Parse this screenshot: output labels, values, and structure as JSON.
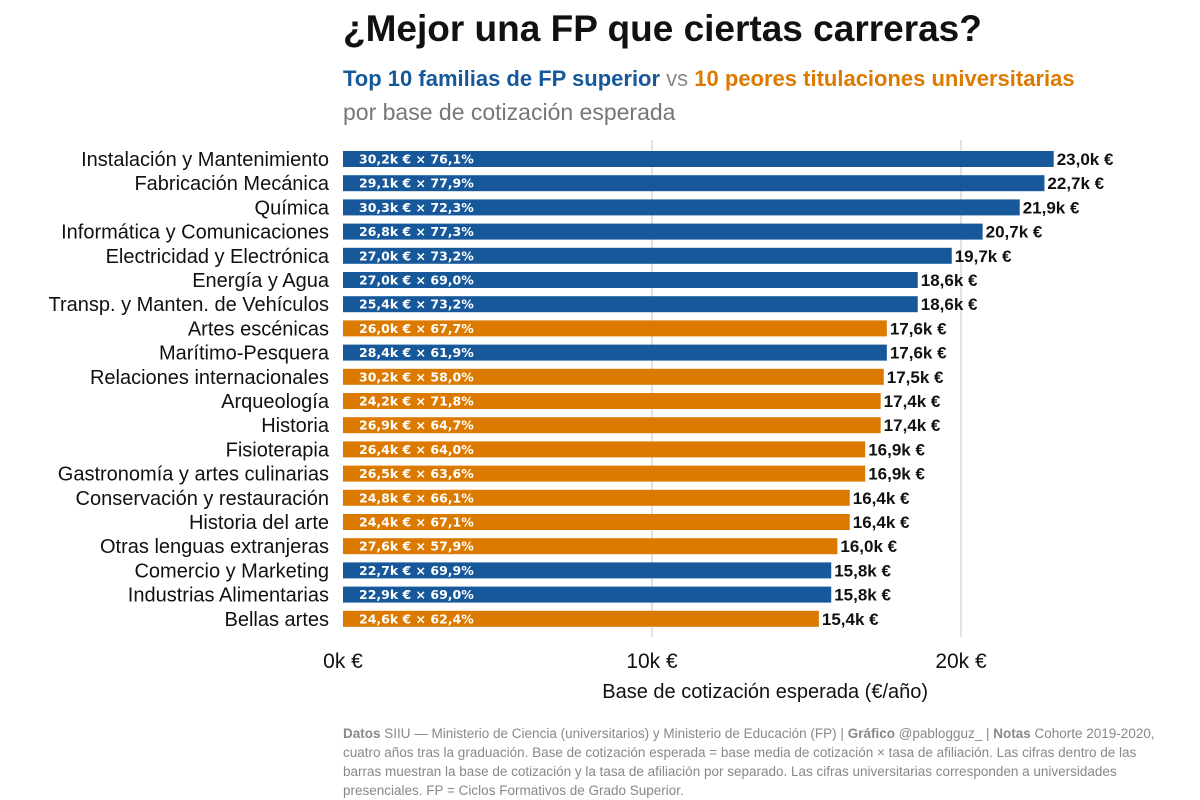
{
  "header": {
    "title": "¿Mejor una FP que ciertas carreras?",
    "subtitle_fp": "Top 10 familias de FP superior",
    "subtitle_vs": " vs ",
    "subtitle_uni": "10 peores titulaciones universitarias",
    "subtitle2": "por base de cotización esperada"
  },
  "colors": {
    "fp": "#16589a",
    "uni": "#dc7a00",
    "grid": "#e2e2e2"
  },
  "chart_data": {
    "type": "bar",
    "orientation": "horizontal",
    "title": "¿Mejor una FP que ciertas carreras?",
    "xlabel": "Base de cotización esperada (€/año)",
    "xlim": [
      0,
      27000
    ],
    "xticks": [
      {
        "value": 0,
        "label": "0k €"
      },
      {
        "value": 10000,
        "label": "10k €"
      },
      {
        "value": 20000,
        "label": "20k €"
      }
    ],
    "grid": true,
    "bars": [
      {
        "category": "Instalación y Mantenimiento",
        "group": "fp",
        "value": 23000,
        "value_label": "23,0k €",
        "inner_label": "30,2k € × 76,1%"
      },
      {
        "category": "Fabricación Mecánica",
        "group": "fp",
        "value": 22700,
        "value_label": "22,7k €",
        "inner_label": "29,1k € × 77,9%"
      },
      {
        "category": "Química",
        "group": "fp",
        "value": 21900,
        "value_label": "21,9k €",
        "inner_label": "30,3k € × 72,3%"
      },
      {
        "category": "Informática y Comunicaciones",
        "group": "fp",
        "value": 20700,
        "value_label": "20,7k €",
        "inner_label": "26,8k € × 77,3%"
      },
      {
        "category": "Electricidad y Electrónica",
        "group": "fp",
        "value": 19700,
        "value_label": "19,7k €",
        "inner_label": "27,0k € × 73,2%"
      },
      {
        "category": "Energía y Agua",
        "group": "fp",
        "value": 18600,
        "value_label": "18,6k €",
        "inner_label": "27,0k € × 69,0%"
      },
      {
        "category": "Transp. y Manten. de Vehículos",
        "group": "fp",
        "value": 18600,
        "value_label": "18,6k €",
        "inner_label": "25,4k € × 73,2%"
      },
      {
        "category": "Artes escénicas",
        "group": "uni",
        "value": 17600,
        "value_label": "17,6k €",
        "inner_label": "26,0k € × 67,7%"
      },
      {
        "category": "Marítimo-Pesquera",
        "group": "fp",
        "value": 17600,
        "value_label": "17,6k €",
        "inner_label": "28,4k € × 61,9%"
      },
      {
        "category": "Relaciones internacionales",
        "group": "uni",
        "value": 17500,
        "value_label": "17,5k €",
        "inner_label": "30,2k € × 58,0%"
      },
      {
        "category": "Arqueología",
        "group": "uni",
        "value": 17400,
        "value_label": "17,4k €",
        "inner_label": "24,2k € × 71,8%"
      },
      {
        "category": "Historia",
        "group": "uni",
        "value": 17400,
        "value_label": "17,4k €",
        "inner_label": "26,9k € × 64,7%"
      },
      {
        "category": "Fisioterapia",
        "group": "uni",
        "value": 16900,
        "value_label": "16,9k €",
        "inner_label": "26,4k € × 64,0%"
      },
      {
        "category": "Gastronomía y artes culinarias",
        "group": "uni",
        "value": 16900,
        "value_label": "16,9k €",
        "inner_label": "26,5k € × 63,6%"
      },
      {
        "category": "Conservación y restauración",
        "group": "uni",
        "value": 16400,
        "value_label": "16,4k €",
        "inner_label": "24,8k € × 66,1%"
      },
      {
        "category": "Historia del arte",
        "group": "uni",
        "value": 16400,
        "value_label": "16,4k €",
        "inner_label": "24,4k € × 67,1%"
      },
      {
        "category": "Otras lenguas extranjeras",
        "group": "uni",
        "value": 16000,
        "value_label": "16,0k €",
        "inner_label": "27,6k € × 57,9%"
      },
      {
        "category": "Comercio y Marketing",
        "group": "fp",
        "value": 15800,
        "value_label": "15,8k €",
        "inner_label": "22,7k € × 69,9%"
      },
      {
        "category": "Industrias Alimentarias",
        "group": "fp",
        "value": 15800,
        "value_label": "15,8k €",
        "inner_label": "22,9k € × 69,0%"
      },
      {
        "category": "Bellas artes",
        "group": "uni",
        "value": 15400,
        "value_label": "15,4k €",
        "inner_label": "24,6k € × 62,4%"
      }
    ]
  },
  "notes": {
    "datos_label": "Datos",
    "datos_text": " SIIU — Ministerio de Ciencia (universitarios) y Ministerio de Educación (FP) | ",
    "grafico_label": "Gráfico",
    "grafico_text": " @pablogguz_ | ",
    "notas_label": "Notas",
    "notas_text": " Cohorte 2019-2020, cuatro años tras la graduación. Base de cotización esperada = base media de cotización × tasa de afiliación. Las cifras dentro de las barras muestran la base de cotización y la tasa de afiliación por separado. Las cifras universitarias corresponden a universidades presenciales. FP = Ciclos Formativos de Grado Superior."
  }
}
